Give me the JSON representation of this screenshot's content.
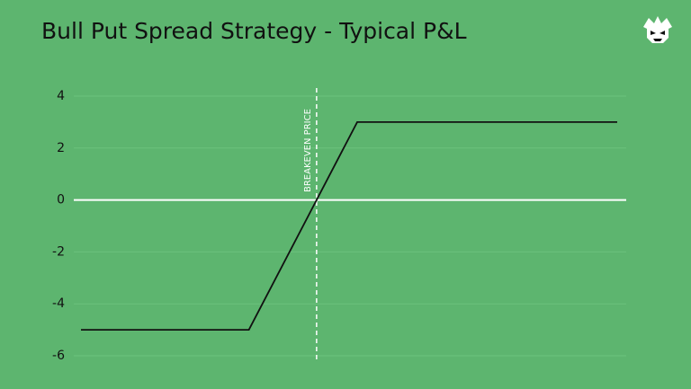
{
  "chart_data": {
    "type": "line",
    "title": "Bull Put Spread Strategy - Typical P&L",
    "x": [
      0,
      31,
      51,
      99
    ],
    "xlim": [
      0,
      100
    ],
    "values": [
      -5,
      -5,
      3,
      3
    ],
    "color": "#111111",
    "ylim": [
      -6,
      4
    ],
    "yticks": [
      -6,
      -4,
      -2,
      0,
      2,
      4
    ],
    "grid": true,
    "breakeven": {
      "x": 43.5,
      "label": "BREAKEVEN PRICE"
    }
  }
}
